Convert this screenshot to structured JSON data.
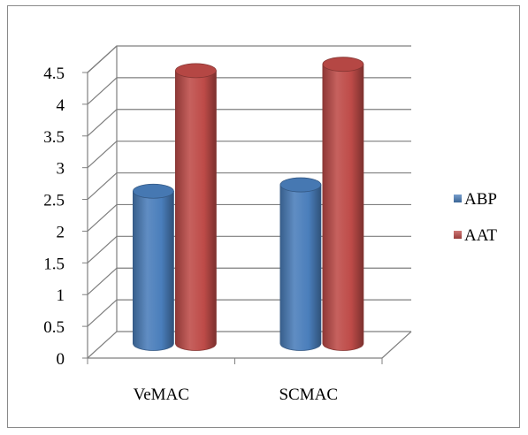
{
  "chart_data": {
    "type": "bar",
    "style": "3d-cylinder",
    "categories": [
      "VeMAC",
      "SCMAC"
    ],
    "series": [
      {
        "name": "ABP",
        "values": [
          2.4,
          2.5
        ],
        "color": "#4a7ebb"
      },
      {
        "name": "AAT",
        "values": [
          4.3,
          4.4
        ],
        "color": "#be4b48"
      }
    ],
    "yticks": [
      "0",
      "0.5",
      "1",
      "1.5",
      "2",
      "2.5",
      "3",
      "3.5",
      "4",
      "4.5"
    ],
    "ylim": [
      0,
      4.5
    ],
    "grid": true,
    "legend": "right",
    "title": "",
    "xlabel": "",
    "ylabel": ""
  }
}
